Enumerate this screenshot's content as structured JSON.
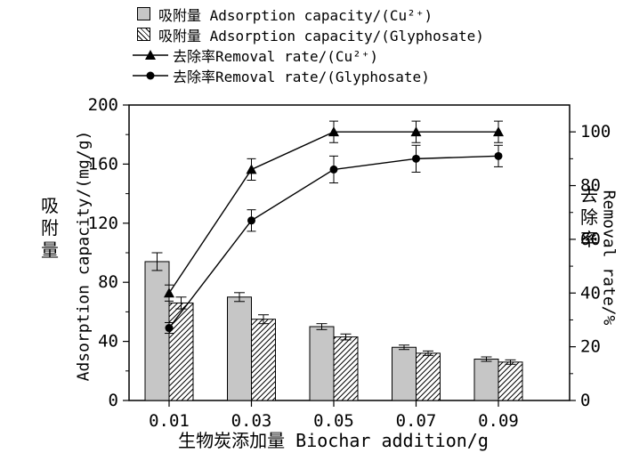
{
  "chart_data": {
    "type": "bar+line",
    "title": "",
    "xlabel": "生物炭添加量 Biochar addition/g",
    "ylabel_left_cn": "吸附量",
    "ylabel_left_en": "Adsorption capacity/(mg/g)",
    "ylabel_right_cn": "去除率",
    "ylabel_right_en": "Removal rate/%",
    "categories": [
      "0.01",
      "0.03",
      "0.05",
      "0.07",
      "0.09"
    ],
    "ylim_left": [
      0,
      200
    ],
    "ylim_right": [
      0,
      110
    ],
    "yticks_left": [
      0,
      40,
      80,
      120,
      160,
      200
    ],
    "yticks_right": [
      0,
      20,
      40,
      60,
      80,
      100
    ],
    "grid": false,
    "legend_position": "top-left",
    "bar_series": [
      {
        "name": "吸附量 Adsorption capacity/(Cu²⁺)",
        "axis": "left",
        "style": "solid-gray",
        "color": "#c6c6c6",
        "values": [
          94,
          70,
          50,
          36,
          28
        ],
        "errors": [
          6,
          3,
          2,
          1.5,
          1.5
        ]
      },
      {
        "name": "吸附量 Adsorption capacity/(Glyphosate)",
        "axis": "left",
        "style": "hatched",
        "color": "#ffffff",
        "values": [
          66,
          55,
          43,
          32,
          26
        ],
        "errors": [
          4,
          3,
          2,
          1.5,
          1.5
        ]
      }
    ],
    "line_series": [
      {
        "name": "去除率Removal rate/(Cu²⁺)",
        "axis": "right",
        "marker": "triangle",
        "color": "#000000",
        "values": [
          40,
          86,
          100,
          100,
          100
        ],
        "errors": [
          3,
          4,
          4,
          4,
          4
        ]
      },
      {
        "name": "去除率Removal rate/(Glyphosate)",
        "axis": "right",
        "marker": "circle",
        "color": "#000000",
        "values": [
          27,
          67,
          86,
          90,
          91
        ],
        "errors": [
          2,
          4,
          5,
          5,
          4
        ]
      }
    ]
  }
}
